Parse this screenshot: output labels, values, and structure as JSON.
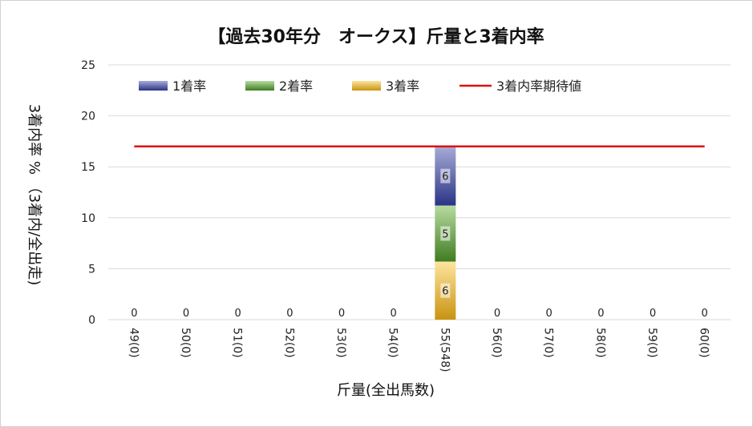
{
  "chart_data": {
    "type": "bar",
    "stacked": true,
    "title": "【過去30年分　オークス】斤量と3着内率",
    "xlabel": "斤量(全出馬数)",
    "ylabel": "3着内率 %  （3着内/全出走)",
    "ylim": [
      0,
      25
    ],
    "yticks": [
      0,
      5,
      10,
      15,
      20,
      25
    ],
    "grid": true,
    "legend_position": "top",
    "categories": [
      "49(0)",
      "50(0)",
      "51(0)",
      "52(0)",
      "53(0)",
      "54(0)",
      "55(548)",
      "56(0)",
      "57(0)",
      "58(0)",
      "59(0)",
      "60(0)"
    ],
    "series": [
      {
        "name": "3着率",
        "color": "#e3b53a",
        "values": [
          0,
          0,
          0,
          0,
          0,
          0,
          5.7,
          0,
          0,
          0,
          0,
          0
        ],
        "labels": [
          "0",
          "0",
          "0",
          "0",
          "0",
          "0",
          "6",
          "0",
          "0",
          "0",
          "0",
          "0"
        ]
      },
      {
        "name": "2着率",
        "color": "#70ad47",
        "values": [
          0,
          0,
          0,
          0,
          0,
          0,
          5.5,
          0,
          0,
          0,
          0,
          0
        ],
        "labels": [
          "",
          "",
          "",
          "",
          "",
          "",
          "5",
          "",
          "",
          "",
          "",
          ""
        ]
      },
      {
        "name": "1着率",
        "color": "#5660a8",
        "values": [
          0,
          0,
          0,
          0,
          0,
          0,
          5.8,
          0,
          0,
          0,
          0,
          0
        ],
        "labels": [
          "",
          "",
          "",
          "",
          "",
          "",
          "6",
          "",
          "",
          "",
          "",
          ""
        ]
      }
    ],
    "line": {
      "name": "3着内率期待値",
      "color": "#e01010",
      "value": 17.0
    },
    "legend_order": [
      "1着率",
      "2着率",
      "3着率",
      "3着内率期待値"
    ]
  }
}
